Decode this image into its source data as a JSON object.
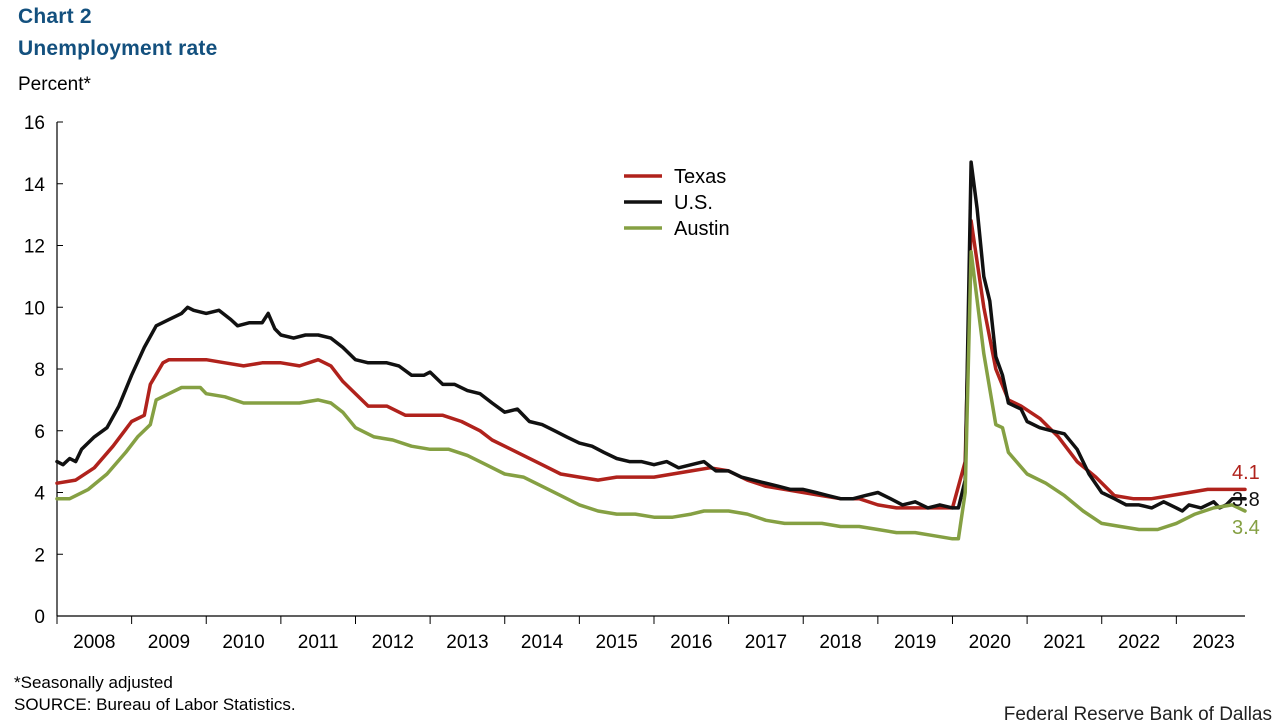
{
  "header": {
    "title": "Chart 2",
    "subtitle": "Unemployment  rate",
    "y_unit": "Percent*"
  },
  "footer": {
    "footnote": "*Seasonally adjusted",
    "source": "SOURCE:  Bureau  of Labor Statistics.",
    "credit": "Federal Reserve Bank of Dallas"
  },
  "chart_data": {
    "type": "line",
    "ylim": [
      0,
      16
    ],
    "yticks": [
      "0",
      "2",
      "4",
      "6",
      "8",
      "10",
      "12",
      "14",
      "16"
    ],
    "xlim": [
      2008.0,
      2023.92
    ],
    "year_labels": [
      "2008",
      "2009",
      "2010",
      "2011",
      "2012",
      "2013",
      "2014",
      "2015",
      "2016",
      "2017",
      "2018",
      "2019",
      "2020",
      "2021",
      "2022",
      "2023"
    ],
    "grid": false,
    "legend_position": "top-center",
    "series": [
      {
        "name": "Texas",
        "color": "#b0221c",
        "end_label": "4.1",
        "points": [
          [
            2008.0,
            4.3
          ],
          [
            2008.25,
            4.4
          ],
          [
            2008.5,
            4.8
          ],
          [
            2008.75,
            5.5
          ],
          [
            2009.0,
            6.3
          ],
          [
            2009.17,
            6.5
          ],
          [
            2009.25,
            7.5
          ],
          [
            2009.42,
            8.2
          ],
          [
            2009.5,
            8.3
          ],
          [
            2009.75,
            8.3
          ],
          [
            2010.0,
            8.3
          ],
          [
            2010.25,
            8.2
          ],
          [
            2010.5,
            8.1
          ],
          [
            2010.75,
            8.2
          ],
          [
            2011.0,
            8.2
          ],
          [
            2011.25,
            8.1
          ],
          [
            2011.5,
            8.3
          ],
          [
            2011.67,
            8.1
          ],
          [
            2011.83,
            7.6
          ],
          [
            2012.0,
            7.2
          ],
          [
            2012.17,
            6.8
          ],
          [
            2012.42,
            6.8
          ],
          [
            2012.67,
            6.5
          ],
          [
            2012.92,
            6.5
          ],
          [
            2013.17,
            6.5
          ],
          [
            2013.42,
            6.3
          ],
          [
            2013.67,
            6.0
          ],
          [
            2013.83,
            5.7
          ],
          [
            2014.0,
            5.5
          ],
          [
            2014.25,
            5.2
          ],
          [
            2014.5,
            4.9
          ],
          [
            2014.75,
            4.6
          ],
          [
            2015.0,
            4.5
          ],
          [
            2015.25,
            4.4
          ],
          [
            2015.5,
            4.5
          ],
          [
            2015.75,
            4.5
          ],
          [
            2016.0,
            4.5
          ],
          [
            2016.25,
            4.6
          ],
          [
            2016.5,
            4.7
          ],
          [
            2016.75,
            4.8
          ],
          [
            2017.0,
            4.7
          ],
          [
            2017.25,
            4.4
          ],
          [
            2017.5,
            4.2
          ],
          [
            2017.75,
            4.1
          ],
          [
            2018.0,
            4.0
          ],
          [
            2018.25,
            3.9
          ],
          [
            2018.5,
            3.8
          ],
          [
            2018.75,
            3.8
          ],
          [
            2019.0,
            3.6
          ],
          [
            2019.25,
            3.5
          ],
          [
            2019.5,
            3.5
          ],
          [
            2019.75,
            3.5
          ],
          [
            2020.0,
            3.5
          ],
          [
            2020.17,
            5.0
          ],
          [
            2020.25,
            12.8
          ],
          [
            2020.42,
            10.0
          ],
          [
            2020.58,
            8.0
          ],
          [
            2020.75,
            7.0
          ],
          [
            2020.92,
            6.8
          ],
          [
            2021.17,
            6.4
          ],
          [
            2021.42,
            5.8
          ],
          [
            2021.67,
            5.0
          ],
          [
            2021.92,
            4.5
          ],
          [
            2022.17,
            3.9
          ],
          [
            2022.42,
            3.8
          ],
          [
            2022.67,
            3.8
          ],
          [
            2022.92,
            3.9
          ],
          [
            2023.17,
            4.0
          ],
          [
            2023.42,
            4.1
          ],
          [
            2023.67,
            4.1
          ],
          [
            2023.92,
            4.1
          ]
        ]
      },
      {
        "name": "U.S.",
        "color": "#111111",
        "end_label": "3.8",
        "points": [
          [
            2008.0,
            5.0
          ],
          [
            2008.08,
            4.9
          ],
          [
            2008.17,
            5.1
          ],
          [
            2008.25,
            5.0
          ],
          [
            2008.33,
            5.4
          ],
          [
            2008.5,
            5.8
          ],
          [
            2008.67,
            6.1
          ],
          [
            2008.83,
            6.8
          ],
          [
            2009.0,
            7.8
          ],
          [
            2009.17,
            8.7
          ],
          [
            2009.33,
            9.4
          ],
          [
            2009.5,
            9.6
          ],
          [
            2009.67,
            9.8
          ],
          [
            2009.75,
            10.0
          ],
          [
            2009.83,
            9.9
          ],
          [
            2010.0,
            9.8
          ],
          [
            2010.17,
            9.9
          ],
          [
            2010.33,
            9.6
          ],
          [
            2010.42,
            9.4
          ],
          [
            2010.58,
            9.5
          ],
          [
            2010.75,
            9.5
          ],
          [
            2010.83,
            9.8
          ],
          [
            2010.92,
            9.3
          ],
          [
            2011.0,
            9.1
          ],
          [
            2011.17,
            9.0
          ],
          [
            2011.33,
            9.1
          ],
          [
            2011.5,
            9.1
          ],
          [
            2011.67,
            9.0
          ],
          [
            2011.83,
            8.7
          ],
          [
            2012.0,
            8.3
          ],
          [
            2012.17,
            8.2
          ],
          [
            2012.42,
            8.2
          ],
          [
            2012.58,
            8.1
          ],
          [
            2012.75,
            7.8
          ],
          [
            2012.92,
            7.8
          ],
          [
            2013.0,
            7.9
          ],
          [
            2013.17,
            7.5
          ],
          [
            2013.33,
            7.5
          ],
          [
            2013.5,
            7.3
          ],
          [
            2013.67,
            7.2
          ],
          [
            2013.83,
            6.9
          ],
          [
            2014.0,
            6.6
          ],
          [
            2014.17,
            6.7
          ],
          [
            2014.33,
            6.3
          ],
          [
            2014.5,
            6.2
          ],
          [
            2014.67,
            6.0
          ],
          [
            2014.83,
            5.8
          ],
          [
            2015.0,
            5.6
          ],
          [
            2015.17,
            5.5
          ],
          [
            2015.33,
            5.3
          ],
          [
            2015.5,
            5.1
          ],
          [
            2015.67,
            5.0
          ],
          [
            2015.83,
            5.0
          ],
          [
            2016.0,
            4.9
          ],
          [
            2016.17,
            5.0
          ],
          [
            2016.33,
            4.8
          ],
          [
            2016.5,
            4.9
          ],
          [
            2016.67,
            5.0
          ],
          [
            2016.83,
            4.7
          ],
          [
            2017.0,
            4.7
          ],
          [
            2017.17,
            4.5
          ],
          [
            2017.33,
            4.4
          ],
          [
            2017.5,
            4.3
          ],
          [
            2017.67,
            4.2
          ],
          [
            2017.83,
            4.1
          ],
          [
            2018.0,
            4.1
          ],
          [
            2018.17,
            4.0
          ],
          [
            2018.33,
            3.9
          ],
          [
            2018.5,
            3.8
          ],
          [
            2018.67,
            3.8
          ],
          [
            2018.83,
            3.9
          ],
          [
            2019.0,
            4.0
          ],
          [
            2019.17,
            3.8
          ],
          [
            2019.33,
            3.6
          ],
          [
            2019.5,
            3.7
          ],
          [
            2019.67,
            3.5
          ],
          [
            2019.83,
            3.6
          ],
          [
            2020.0,
            3.5
          ],
          [
            2020.08,
            3.5
          ],
          [
            2020.17,
            4.4
          ],
          [
            2020.25,
            14.7
          ],
          [
            2020.33,
            13.2
          ],
          [
            2020.42,
            11.0
          ],
          [
            2020.5,
            10.2
          ],
          [
            2020.58,
            8.4
          ],
          [
            2020.67,
            7.8
          ],
          [
            2020.75,
            6.9
          ],
          [
            2020.92,
            6.7
          ],
          [
            2021.0,
            6.3
          ],
          [
            2021.17,
            6.1
          ],
          [
            2021.33,
            6.0
          ],
          [
            2021.5,
            5.9
          ],
          [
            2021.67,
            5.4
          ],
          [
            2021.83,
            4.6
          ],
          [
            2022.0,
            4.0
          ],
          [
            2022.17,
            3.8
          ],
          [
            2022.33,
            3.6
          ],
          [
            2022.5,
            3.6
          ],
          [
            2022.67,
            3.5
          ],
          [
            2022.83,
            3.7
          ],
          [
            2023.0,
            3.5
          ],
          [
            2023.08,
            3.4
          ],
          [
            2023.17,
            3.6
          ],
          [
            2023.33,
            3.5
          ],
          [
            2023.5,
            3.7
          ],
          [
            2023.58,
            3.5
          ],
          [
            2023.67,
            3.6
          ],
          [
            2023.75,
            3.8
          ],
          [
            2023.92,
            3.8
          ]
        ]
      },
      {
        "name": "Austin",
        "color": "#85a043",
        "end_label": "3.4",
        "points": [
          [
            2008.0,
            3.8
          ],
          [
            2008.17,
            3.8
          ],
          [
            2008.42,
            4.1
          ],
          [
            2008.67,
            4.6
          ],
          [
            2008.92,
            5.3
          ],
          [
            2009.08,
            5.8
          ],
          [
            2009.25,
            6.2
          ],
          [
            2009.33,
            7.0
          ],
          [
            2009.5,
            7.2
          ],
          [
            2009.67,
            7.4
          ],
          [
            2009.92,
            7.4
          ],
          [
            2010.0,
            7.2
          ],
          [
            2010.25,
            7.1
          ],
          [
            2010.5,
            6.9
          ],
          [
            2010.75,
            6.9
          ],
          [
            2011.0,
            6.9
          ],
          [
            2011.25,
            6.9
          ],
          [
            2011.5,
            7.0
          ],
          [
            2011.67,
            6.9
          ],
          [
            2011.83,
            6.6
          ],
          [
            2012.0,
            6.1
          ],
          [
            2012.25,
            5.8
          ],
          [
            2012.5,
            5.7
          ],
          [
            2012.75,
            5.5
          ],
          [
            2013.0,
            5.4
          ],
          [
            2013.25,
            5.4
          ],
          [
            2013.5,
            5.2
          ],
          [
            2013.75,
            4.9
          ],
          [
            2014.0,
            4.6
          ],
          [
            2014.25,
            4.5
          ],
          [
            2014.5,
            4.2
          ],
          [
            2014.75,
            3.9
          ],
          [
            2015.0,
            3.6
          ],
          [
            2015.25,
            3.4
          ],
          [
            2015.5,
            3.3
          ],
          [
            2015.75,
            3.3
          ],
          [
            2016.0,
            3.2
          ],
          [
            2016.25,
            3.2
          ],
          [
            2016.5,
            3.3
          ],
          [
            2016.67,
            3.4
          ],
          [
            2017.0,
            3.4
          ],
          [
            2017.25,
            3.3
          ],
          [
            2017.5,
            3.1
          ],
          [
            2017.75,
            3.0
          ],
          [
            2018.0,
            3.0
          ],
          [
            2018.25,
            3.0
          ],
          [
            2018.5,
            2.9
          ],
          [
            2018.75,
            2.9
          ],
          [
            2019.0,
            2.8
          ],
          [
            2019.25,
            2.7
          ],
          [
            2019.5,
            2.7
          ],
          [
            2019.75,
            2.6
          ],
          [
            2020.0,
            2.5
          ],
          [
            2020.08,
            2.5
          ],
          [
            2020.17,
            4.0
          ],
          [
            2020.25,
            11.8
          ],
          [
            2020.42,
            8.5
          ],
          [
            2020.58,
            6.2
          ],
          [
            2020.67,
            6.1
          ],
          [
            2020.75,
            5.3
          ],
          [
            2021.0,
            4.6
          ],
          [
            2021.25,
            4.3
          ],
          [
            2021.5,
            3.9
          ],
          [
            2021.75,
            3.4
          ],
          [
            2022.0,
            3.0
          ],
          [
            2022.25,
            2.9
          ],
          [
            2022.5,
            2.8
          ],
          [
            2022.75,
            2.8
          ],
          [
            2023.0,
            3.0
          ],
          [
            2023.25,
            3.3
          ],
          [
            2023.5,
            3.5
          ],
          [
            2023.75,
            3.6
          ],
          [
            2023.92,
            3.4
          ]
        ]
      }
    ]
  }
}
